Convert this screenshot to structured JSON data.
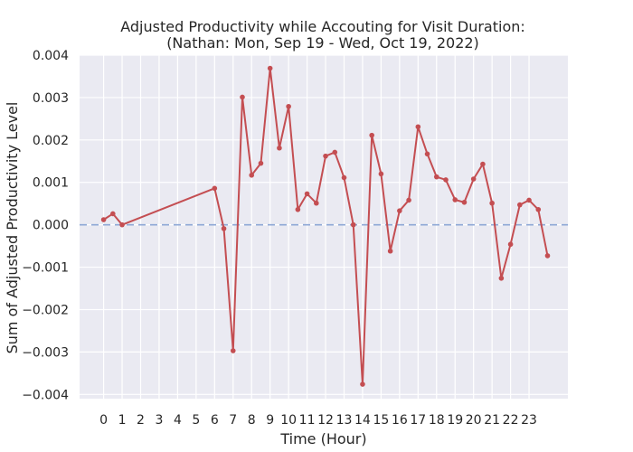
{
  "chart_data": {
    "type": "line",
    "title": "Adjusted Productivity while Accouting for Visit Duration:",
    "subtitle": "(Nathan: Mon, Sep 19 - Wed, Oct 19, 2022)",
    "xlabel": "Time (Hour)",
    "ylabel": "Sum of Adjusted Productivity Level",
    "xlim": [
      -1.3,
      25.1
    ],
    "ylim": [
      -0.0041,
      0.004
    ],
    "grid": true,
    "background": "#eaeaf2",
    "line_color": "#c44e52",
    "baseline_color": "#8fa8d6",
    "baseline_y": 0,
    "x_ticks": [
      0,
      1,
      2,
      3,
      4,
      5,
      6,
      7,
      8,
      9,
      10,
      11,
      12,
      13,
      14,
      15,
      16,
      17,
      18,
      19,
      20,
      21,
      22,
      23
    ],
    "x_tick_labels": [
      "0",
      "1",
      "2",
      "3",
      "4",
      "5",
      "6",
      "7",
      "8",
      "9",
      "10",
      "11",
      "12",
      "13",
      "14",
      "15",
      "16",
      "17",
      "18",
      "19",
      "20",
      "21",
      "22",
      "23"
    ],
    "y_ticks": [
      0.004,
      0.003,
      0.002,
      0.001,
      0.0,
      -0.001,
      -0.002,
      -0.003,
      -0.004
    ],
    "y_tick_labels": [
      "0.004",
      "0.003",
      "0.002",
      "0.001",
      "0.000",
      "−0.001",
      "−0.002",
      "−0.003",
      "−0.004"
    ],
    "x": [
      0,
      0.5,
      1,
      6,
      6.5,
      7,
      7.5,
      8,
      8.5,
      9,
      9.5,
      10,
      10.5,
      11,
      11.5,
      12,
      12.5,
      13,
      13.5,
      14,
      14.5,
      15,
      15.5,
      16,
      16.5,
      17,
      17.5,
      18,
      18.5,
      19,
      19.5,
      20,
      20.5,
      21,
      21.5,
      22,
      22.5,
      23,
      23.5,
      24
    ],
    "y": [
      0.00012,
      0.00026,
      0.0,
      0.00086,
      -9e-05,
      -0.00297,
      0.00301,
      0.00117,
      0.00145,
      0.00369,
      0.00181,
      0.00279,
      0.00036,
      0.00073,
      0.00051,
      0.00162,
      0.00171,
      0.00111,
      0.0,
      -0.00376,
      0.00211,
      0.0012,
      -0.00062,
      0.00033,
      0.00058,
      0.00231,
      0.00167,
      0.00113,
      0.00106,
      0.00059,
      0.00053,
      0.00108,
      0.00143,
      0.00051,
      -0.00126,
      -0.00046,
      0.00047,
      0.00058,
      0.00036,
      -0.00073
    ]
  }
}
